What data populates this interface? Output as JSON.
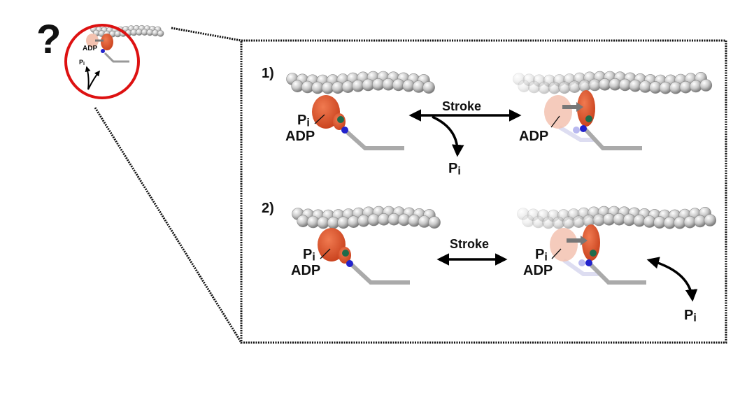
{
  "overview": {
    "question_mark": "?",
    "adp_label": "ADP",
    "pi_label": "Pi"
  },
  "panel_1": {
    "number": "1)",
    "stroke_label": "Stroke",
    "left_pi_label": "Pi",
    "left_adp_label": "ADP",
    "released_pi_label": "Pi",
    "right_adp_label": "ADP"
  },
  "panel_2": {
    "number": "2)",
    "stroke_label": "Stroke",
    "left_pi_label": "Pi",
    "left_adp_label": "ADP",
    "right_pi_label": "Pi",
    "right_adp_label": "ADP",
    "released_pi_label": "Pi"
  },
  "colors": {
    "myosin_head": "#e05a32",
    "myosin_shadow": "#f3c2b0",
    "lever_dot_blue": "#2222cc",
    "lever_dot_green": "#1f6b4a",
    "actin_bead": "#c8c8c8",
    "circle": "#dd1111",
    "box_border": "#111111"
  }
}
